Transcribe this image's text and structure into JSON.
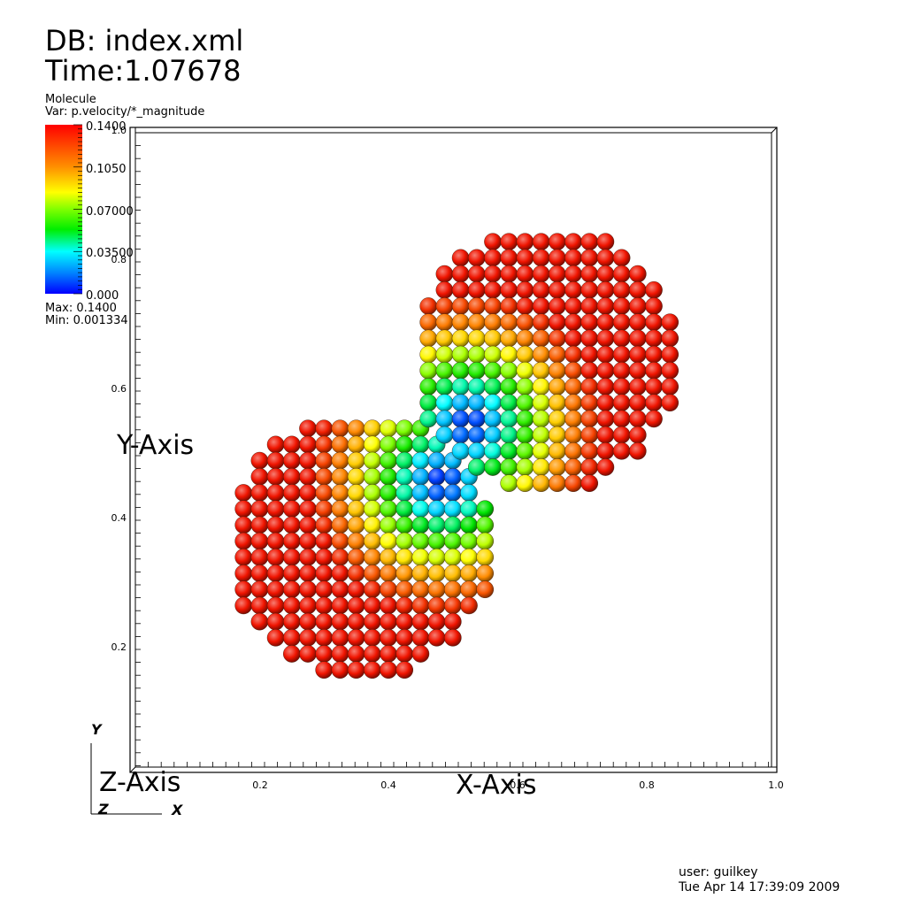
{
  "header": {
    "db_label": "DB: index.xml",
    "time_label": "Time:1.07678"
  },
  "legend": {
    "title": "Molecule",
    "variable": "Var: p.velocity/*_magnitude",
    "ticks": [
      "0.1400",
      "0.1050",
      "0.07000",
      "0.03500",
      "0.000"
    ],
    "max_label": "Max: 0.1400",
    "min_label": "Min: 0.001334",
    "colors": [
      "#ff0000",
      "#ff8000",
      "#ffff00",
      "#00ff00",
      "#00ffff",
      "#0000ff"
    ]
  },
  "plot": {
    "x_axis_title": "X-Axis",
    "y_axis_title": "Y-Axis",
    "z_axis_title": "Z-Axis",
    "x_ticks": [
      "0.2",
      "0.4",
      "0.6",
      "0.8",
      "1.0"
    ],
    "y_ticks": [
      "0.2",
      "0.4",
      "0.6",
      "0.8",
      "1.0"
    ],
    "x_range": [
      0.0,
      1.0
    ],
    "y_range": [
      0.0,
      1.0
    ],
    "background": "#ffffff"
  },
  "triad": {
    "x_label": "X",
    "y_label": "Y",
    "z_label": "Z"
  },
  "footer": {
    "user": "user: guilkey",
    "date": "Tue Apr 14 17:39:09 2009"
  }
}
